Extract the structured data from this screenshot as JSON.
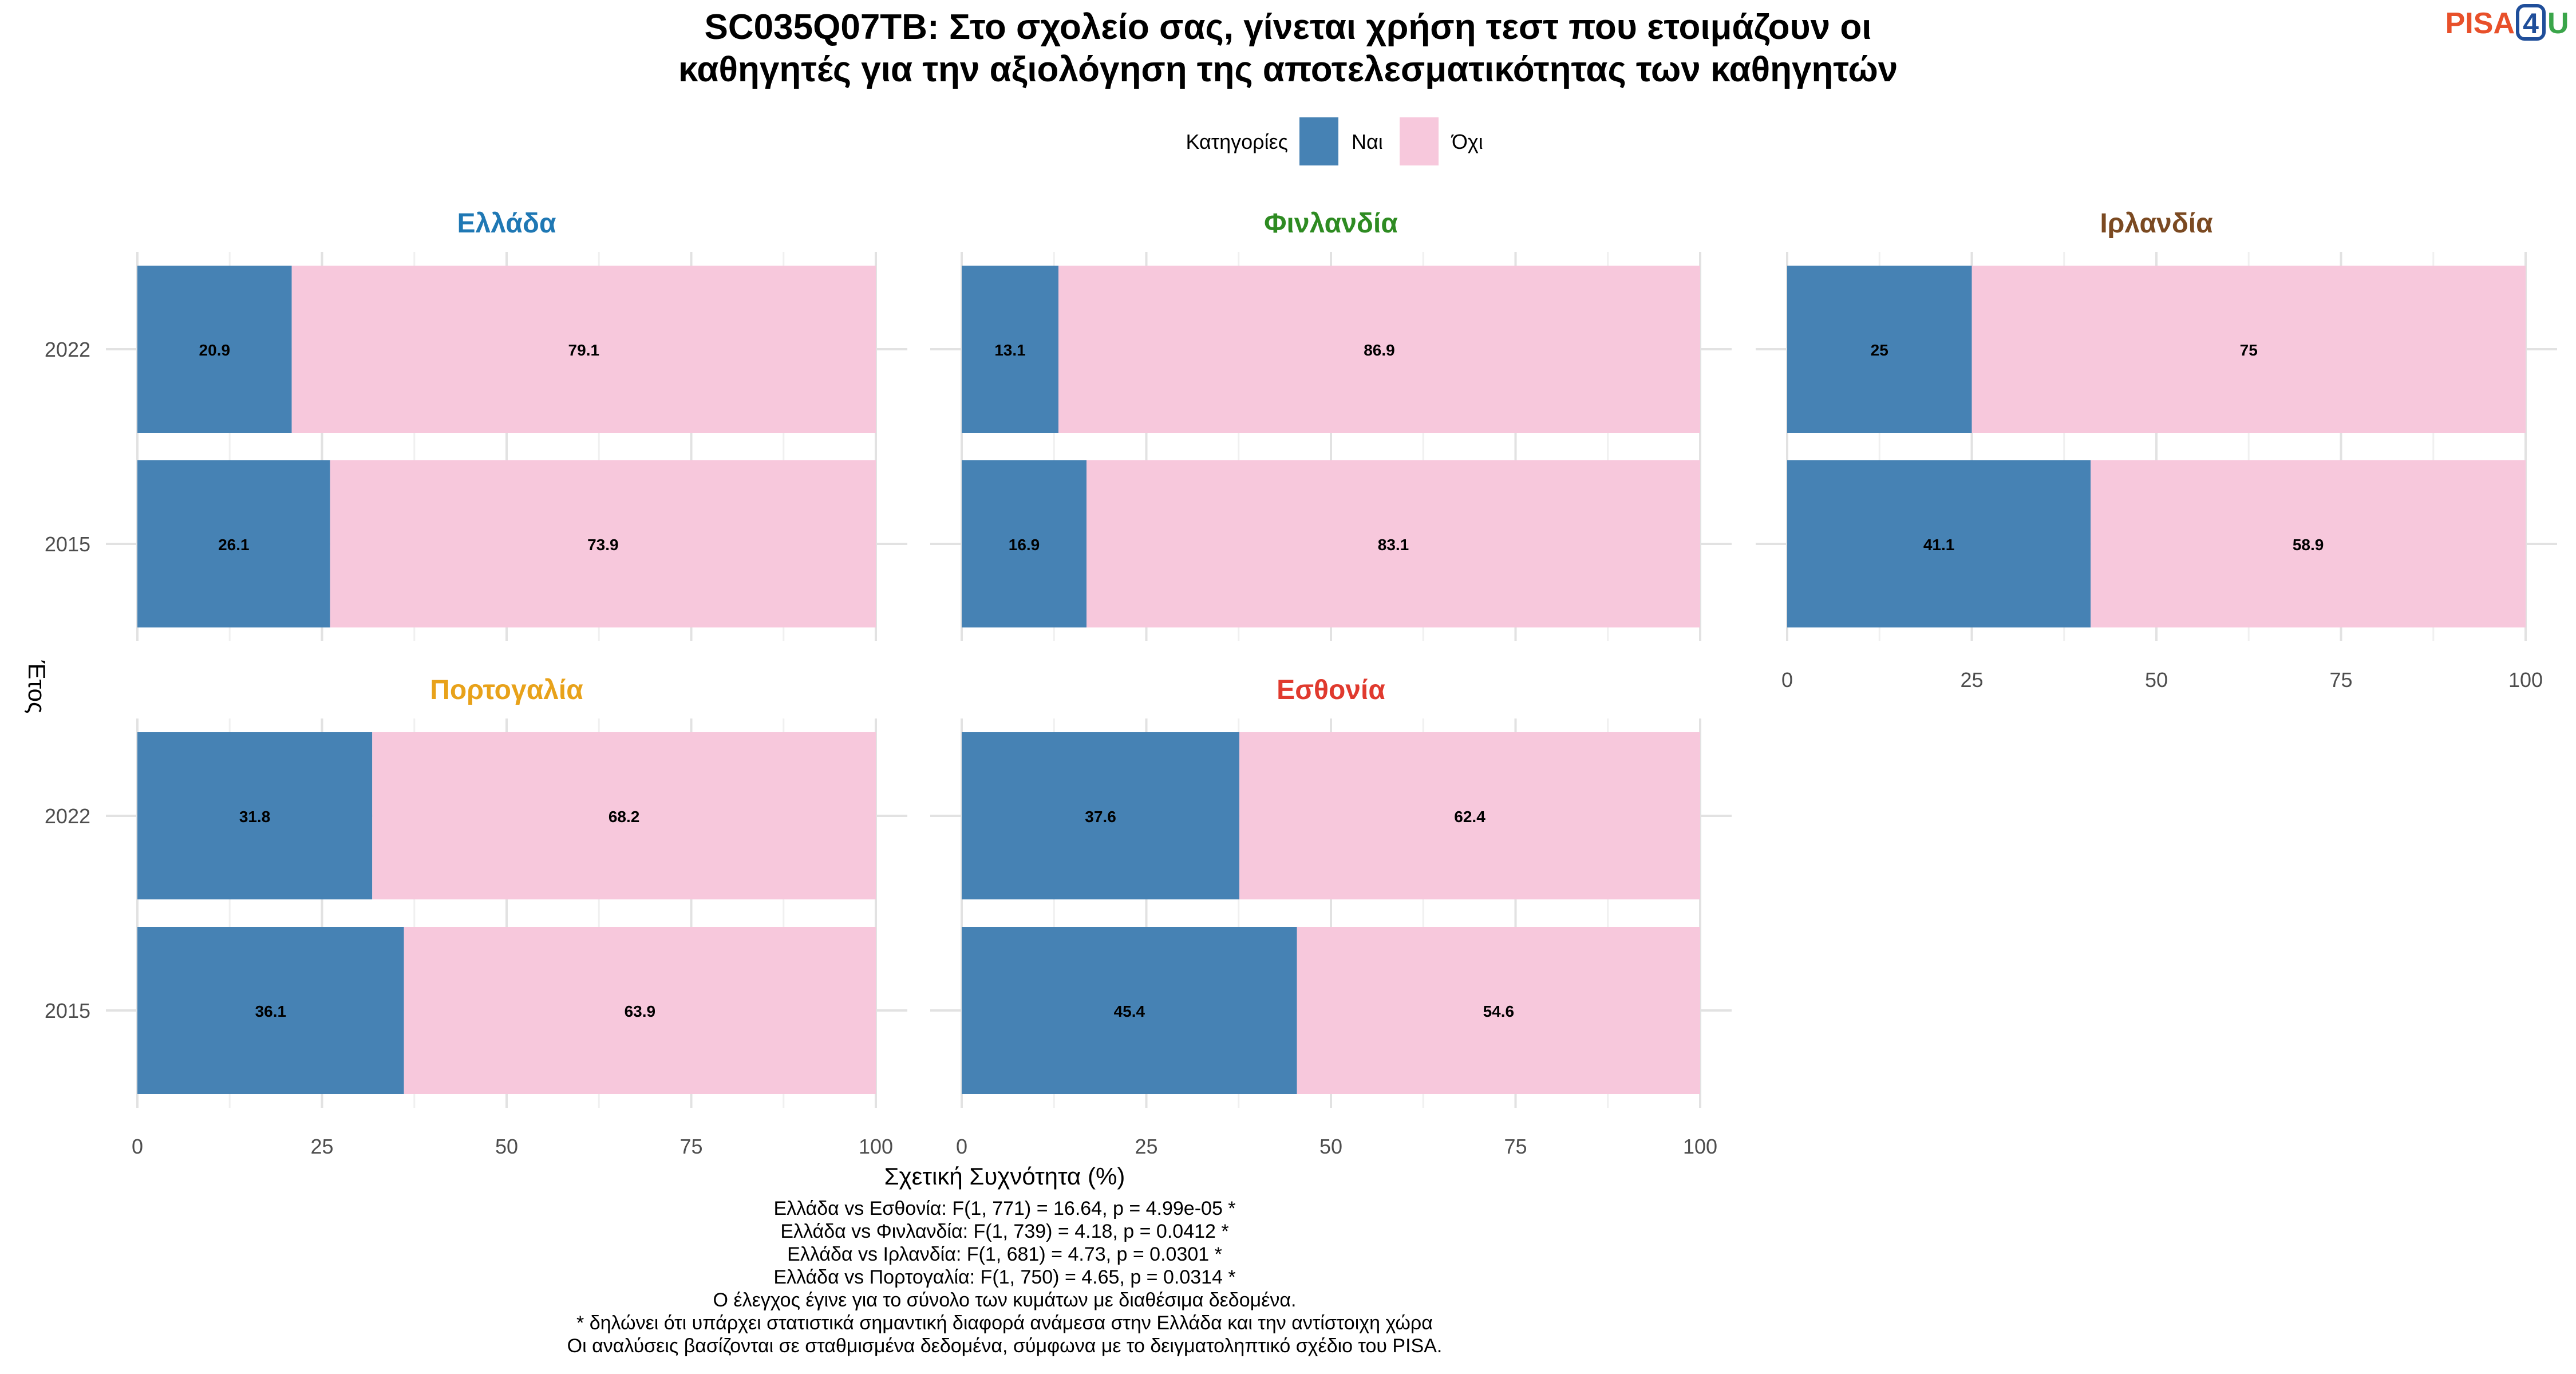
{
  "chart_data": {
    "type": "bar",
    "orientation": "horizontal",
    "stacked": true,
    "title_line1": "SC035Q07TB: Στο σχολείο σας, γίνεται χρήση τεστ που ετοιμάζουν οι",
    "title_line2": "καθηγητές για την αξιολόγηση της αποτελεσματικότητας των καθηγητών",
    "xlabel": "Σχετική Συχνότητα (%)",
    "ylabel": "Έτος",
    "xlim": [
      0,
      100
    ],
    "xticks": [
      "0",
      "25",
      "50",
      "75",
      "100"
    ],
    "categories": [
      "2022",
      "2015"
    ],
    "legend": {
      "title": "Κατηγορίες",
      "position": "top",
      "items": [
        {
          "label": "Ναι",
          "color": "#4682B4"
        },
        {
          "label": "Όχι",
          "color": "#F7C8DC"
        }
      ]
    },
    "grid": true,
    "panels": [
      {
        "name": "Ελλάδα",
        "color": "#1F78B4",
        "series": [
          {
            "name": "Ναι",
            "values": [
              20.9,
              26.1
            ],
            "labels": [
              "20.9",
              "26.1"
            ]
          },
          {
            "name": "Όχι",
            "values": [
              79.1,
              73.9
            ],
            "labels": [
              "79.1",
              "73.9"
            ]
          }
        ]
      },
      {
        "name": "Φινλανδία",
        "color": "#2E8B22",
        "series": [
          {
            "name": "Ναι",
            "values": [
              13.1,
              16.9
            ],
            "labels": [
              "13.1",
              "16.9"
            ]
          },
          {
            "name": "Όχι",
            "values": [
              86.9,
              83.1
            ],
            "labels": [
              "86.9",
              "83.1"
            ]
          }
        ]
      },
      {
        "name": "Ιρλανδία",
        "color": "#7B4A22",
        "series": [
          {
            "name": "Ναι",
            "values": [
              25,
              41.1
            ],
            "labels": [
              "25",
              "41.1"
            ]
          },
          {
            "name": "Όχι",
            "values": [
              75,
              58.9
            ],
            "labels": [
              "75",
              "58.9"
            ]
          }
        ]
      },
      {
        "name": "Πορτογαλία",
        "color": "#E8A21A",
        "series": [
          {
            "name": "Ναι",
            "values": [
              31.8,
              36.1
            ],
            "labels": [
              "31.8",
              "36.1"
            ]
          },
          {
            "name": "Όχι",
            "values": [
              68.2,
              63.9
            ],
            "labels": [
              "68.2",
              "63.9"
            ]
          }
        ]
      },
      {
        "name": "Εσθονία",
        "color": "#E03A2E",
        "series": [
          {
            "name": "Ναι",
            "values": [
              37.6,
              45.4
            ],
            "labels": [
              "37.6",
              "45.4"
            ]
          },
          {
            "name": "Όχι",
            "values": [
              62.4,
              54.6
            ],
            "labels": [
              "62.4",
              "54.6"
            ]
          }
        ]
      }
    ],
    "footnotes": [
      "Ελλάδα vs Εσθονία: F(1, 771) = 16.64, p = 4.99e-05 *",
      "Ελλάδα vs Φινλανδία: F(1, 739) = 4.18, p = 0.0412 *",
      "Ελλάδα vs Ιρλανδία: F(1, 681) = 4.73, p = 0.0301 *",
      "Ελλάδα vs Πορτογαλία: F(1, 750) = 4.65, p = 0.0314 *",
      "Ο έλεγχος έγινε για το σύνολο των κυμάτων με διαθέσιμα δεδομένα.",
      "* δηλώνει ότι υπάρχει στατιστικά σημαντική διαφορά ανάμεσα στην Ελλάδα και την αντίστοιχη χώρα",
      "Οι αναλύσεις βασίζονται σε σταθμισμένα δεδομένα, σύμφωνα με το δειγματοληπτικό σχέδιο του PISA."
    ]
  },
  "logo": {
    "part1": "PISA",
    "part2": "4",
    "part3": "U",
    "color1": "#E8502A",
    "color2": "#1F4E9A",
    "color3": "#3AA54A"
  }
}
